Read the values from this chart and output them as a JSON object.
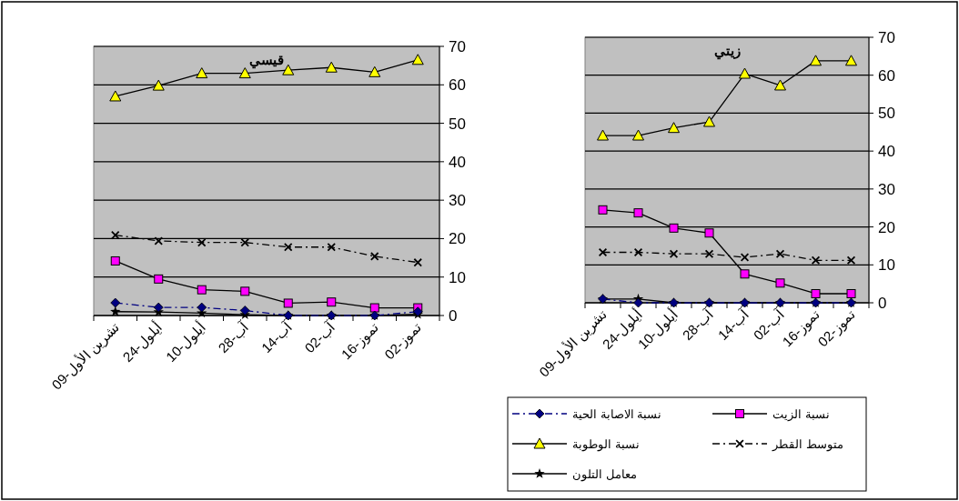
{
  "chart_data": [
    {
      "type": "line",
      "title": "قيسي",
      "categories": [
        "تشرين الأول-09",
        "أيلول-24",
        "أيلول-10",
        "آب-28",
        "آب-14",
        "آب-02",
        "تموز-16",
        "تموز-02"
      ],
      "ylim": [
        0,
        70
      ],
      "yticks": [
        0,
        10,
        20,
        30,
        40,
        50,
        60,
        70
      ],
      "grid": "y",
      "series": [
        {
          "color": "#000080",
          "marker": "diamond",
          "line_style": "dashed",
          "values": [
            3.3,
            2.1,
            2.1,
            1.3,
            0,
            0,
            0,
            1.0
          ]
        },
        {
          "color": "#ff00ff",
          "marker": "square",
          "line_style": "solid",
          "values": [
            14.2,
            9.5,
            6.7,
            6.3,
            3.2,
            3.5,
            2.0,
            2.0
          ]
        },
        {
          "color": "#ffff00",
          "marker": "triangle",
          "line_style": "solid",
          "values": [
            57.0,
            59.8,
            63.0,
            63.0,
            63.8,
            64.5,
            63.3,
            66.5
          ]
        },
        {
          "color": "#000000",
          "marker": "cross",
          "line_style": "dashed",
          "values": [
            20.9,
            19.4,
            19.0,
            19.0,
            17.8,
            17.8,
            15.4,
            13.8
          ]
        },
        {
          "color": "#000000",
          "marker": "star",
          "line_style": "solid",
          "values": [
            1.0,
            0.9,
            0.6,
            0.2,
            0,
            0,
            0,
            0.3
          ]
        }
      ]
    },
    {
      "type": "line",
      "title": "زيتي",
      "categories": [
        "تشرين الأول-09",
        "أيلول-24",
        "أيلول-10",
        "آب-28",
        "آب-14",
        "آب-02",
        "تموز-16",
        "تموز-02"
      ],
      "ylim": [
        0,
        70
      ],
      "yticks": [
        0,
        10,
        20,
        30,
        40,
        50,
        60,
        70
      ],
      "grid": "y",
      "legend": "bottom",
      "series": [
        {
          "name": "نسبة الاصابة الحية",
          "color": "#000080",
          "marker": "diamond",
          "line_style": "dashed",
          "values": [
            1.0,
            0,
            0,
            0,
            0,
            0,
            0,
            0
          ]
        },
        {
          "name": "نسبة الزيت",
          "color": "#ff00ff",
          "marker": "square",
          "line_style": "solid",
          "values": [
            24.5,
            23.7,
            19.7,
            18.4,
            7.6,
            5.2,
            2.4,
            2.4
          ]
        },
        {
          "name": "نسبة الوطوبة",
          "color": "#ffff00",
          "marker": "triangle",
          "line_style": "solid",
          "values": [
            44.1,
            44.1,
            46.1,
            47.7,
            60.4,
            57.3,
            63.8,
            63.8
          ]
        },
        {
          "name": "متوسط القطر",
          "color": "#000000",
          "marker": "cross",
          "line_style": "dashed",
          "values": [
            13.3,
            13.3,
            12.9,
            12.9,
            12.0,
            12.9,
            11.2,
            11.2
          ]
        },
        {
          "name": "معامل التلون",
          "color": "#000000",
          "marker": "star",
          "line_style": "solid",
          "values": [
            1.0,
            1.0,
            0,
            0,
            0,
            0,
            0,
            0
          ]
        }
      ]
    }
  ]
}
